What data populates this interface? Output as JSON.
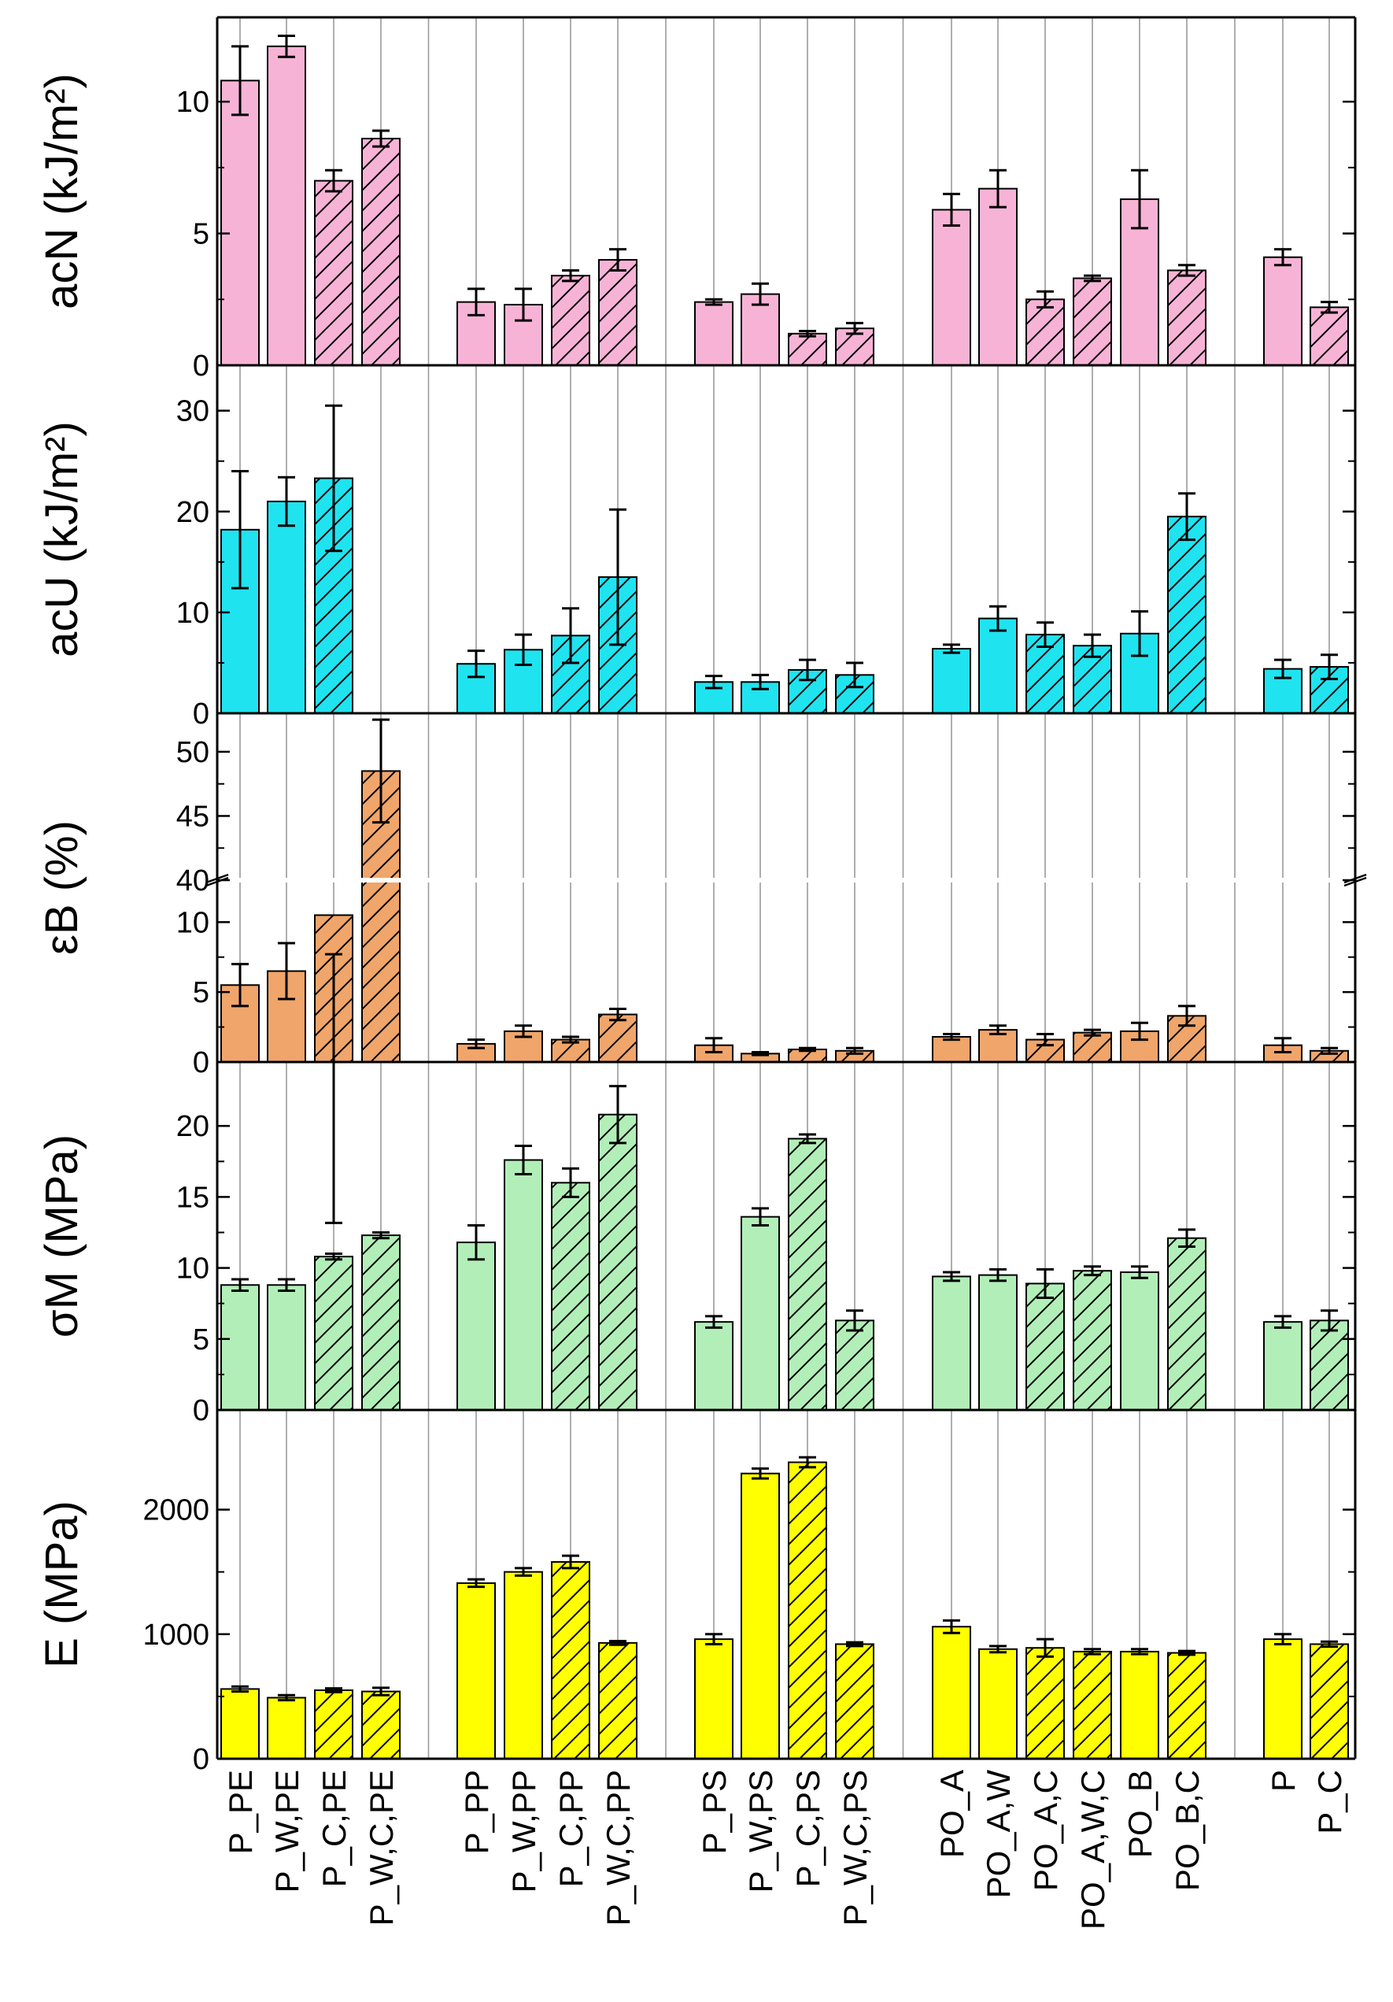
{
  "chart_data": {
    "type": "bar",
    "layout": "five vertically stacked panels sharing one categorical x axis",
    "categories": [
      "P_PE",
      "P_W,PE",
      "P_C,PE",
      "P_W,C,PE",
      "P_PP",
      "P_W,PP",
      "P_C,PP",
      "P_W,C,PP",
      "P_PS",
      "P_W,PS",
      "P_C,PS",
      "P_W,C,PS",
      "PO_A",
      "PO_A,W",
      "PO_A,C",
      "PO_A,W,C",
      "PO_B",
      "PO_B,C",
      "P",
      "P_C"
    ],
    "category_groups": [
      [
        0,
        1,
        2,
        3
      ],
      [
        4,
        5,
        6,
        7
      ],
      [
        8,
        9,
        10,
        11
      ],
      [
        12,
        13,
        14,
        15,
        16,
        17
      ],
      [
        18,
        19
      ]
    ],
    "hatched": [
      false,
      false,
      true,
      true,
      false,
      false,
      true,
      true,
      false,
      false,
      true,
      true,
      false,
      false,
      true,
      true,
      false,
      true,
      false,
      true
    ],
    "grid": "vertical lines at each category",
    "panels": [
      {
        "ylabel": "acN (kJ/m²)",
        "color": "#f7b3d6",
        "ylim": [
          0,
          13.2
        ],
        "yticks": [
          0,
          5,
          10
        ],
        "ytick_labels": [
          "0",
          "5",
          "10"
        ],
        "values": [
          10.8,
          12.1,
          7.0,
          8.6,
          2.4,
          2.3,
          3.4,
          4.0,
          2.4,
          2.7,
          1.2,
          1.4,
          5.9,
          6.7,
          2.5,
          3.3,
          6.3,
          3.6,
          4.1,
          2.2
        ],
        "errors": [
          1.3,
          0.4,
          0.4,
          0.3,
          0.5,
          0.6,
          0.2,
          0.4,
          0.1,
          0.4,
          0.1,
          0.2,
          0.6,
          0.7,
          0.3,
          0.1,
          1.1,
          0.2,
          0.3,
          0.2
        ]
      },
      {
        "ylabel": "acU (kJ/m²)",
        "color": "#20e3f0",
        "ylim": [
          0,
          34.5
        ],
        "yticks": [
          0,
          10,
          20,
          30
        ],
        "ytick_labels": [
          "0",
          "10",
          "20",
          "30"
        ],
        "values": [
          18.2,
          21.0,
          23.3,
          null,
          4.9,
          6.3,
          7.7,
          13.5,
          3.1,
          3.1,
          4.3,
          3.8,
          6.4,
          9.4,
          7.8,
          6.7,
          7.9,
          19.5,
          4.4,
          4.6
        ],
        "errors": [
          5.8,
          2.4,
          7.2,
          null,
          1.3,
          1.5,
          2.7,
          6.7,
          0.6,
          0.7,
          1.0,
          1.2,
          0.4,
          1.2,
          1.2,
          1.1,
          2.2,
          2.3,
          0.9,
          1.2
        ]
      },
      {
        "ylabel": "εB (%)",
        "color": "#f0a56a",
        "broken_axis": true,
        "lower_ylim": [
          0,
          13
        ],
        "upper_ylim": [
          40,
          53
        ],
        "yticks_lower": [
          0,
          5,
          10
        ],
        "yticks_upper": [
          40,
          45,
          50
        ],
        "ytick_labels_lower": [
          "0",
          "5",
          "10"
        ],
        "ytick_labels_upper": [
          "40",
          "45",
          "50"
        ],
        "values": [
          5.5,
          6.5,
          10.5,
          48.5,
          1.3,
          2.2,
          1.6,
          3.4,
          1.2,
          0.6,
          0.9,
          0.8,
          1.8,
          2.3,
          1.6,
          2.1,
          2.2,
          3.3,
          1.2,
          0.8
        ],
        "errors": [
          1.5,
          2.0,
          2.8,
          4.0,
          0.3,
          0.4,
          0.2,
          0.4,
          0.5,
          0.1,
          0.1,
          0.2,
          0.2,
          0.3,
          0.4,
          0.2,
          0.6,
          0.7,
          0.5,
          0.2
        ]
      },
      {
        "ylabel": "σM (MPa)",
        "color": "#b2efb8",
        "ylim": [
          0,
          24.5
        ],
        "yticks": [
          0,
          5,
          10,
          15,
          20
        ],
        "ytick_labels": [
          "0",
          "5",
          "10",
          "15",
          "20"
        ],
        "values": [
          8.8,
          8.8,
          10.8,
          12.3,
          11.8,
          17.6,
          16.0,
          20.8,
          6.2,
          13.6,
          19.1,
          6.3,
          9.4,
          9.5,
          8.9,
          9.8,
          9.7,
          12.1,
          6.2,
          6.3
        ],
        "errors": [
          0.4,
          0.4,
          0.2,
          0.2,
          1.2,
          1.0,
          1.0,
          2.0,
          0.4,
          0.6,
          0.3,
          0.7,
          0.3,
          0.4,
          1.0,
          0.3,
          0.4,
          0.6,
          0.4,
          0.7
        ]
      },
      {
        "ylabel": "E (MPa)",
        "color": "#ffff00",
        "ylim": [
          0,
          2800
        ],
        "yticks": [
          0,
          1000,
          2000
        ],
        "ytick_labels": [
          "0",
          "1000",
          "2000"
        ],
        "values": [
          560,
          490,
          550,
          540,
          1410,
          1500,
          1580,
          930,
          960,
          2290,
          2380,
          920,
          1060,
          880,
          890,
          860,
          860,
          850,
          960,
          920
        ],
        "errors": [
          20,
          20,
          15,
          30,
          30,
          30,
          50,
          15,
          40,
          40,
          40,
          15,
          50,
          25,
          70,
          20,
          20,
          15,
          40,
          20
        ]
      }
    ]
  }
}
